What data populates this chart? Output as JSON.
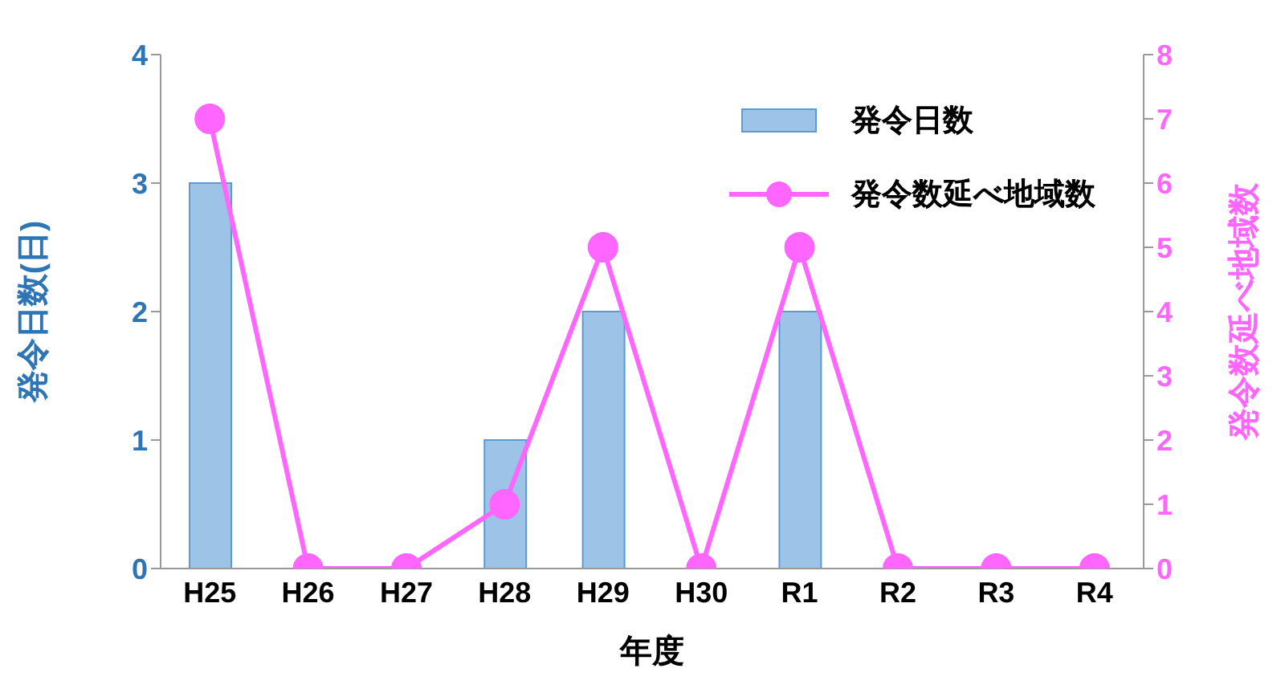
{
  "chart_data": {
    "type": "bar",
    "xlabel": "年度",
    "ylabel": "発令日数(日)",
    "y2label": "発令数延べ地域数",
    "categories": [
      "H25",
      "H26",
      "H27",
      "H28",
      "H29",
      "H30",
      "R1",
      "R2",
      "R3",
      "R4"
    ],
    "series": [
      {
        "name": "発令日数",
        "axis": "y",
        "color": "#9dc3e6",
        "values": [
          3,
          0,
          0,
          1,
          2,
          0,
          2,
          0,
          0,
          0
        ]
      },
      {
        "name": "発令数延べ地域数",
        "type": "line",
        "axis": "y2",
        "color": "#ff66ff",
        "marker": "circle",
        "values": [
          7,
          0,
          0,
          1,
          5,
          0,
          5,
          0,
          0,
          0
        ]
      }
    ],
    "ylim": [
      0,
      4
    ],
    "yticks": [
      0,
      1,
      2,
      3,
      4
    ],
    "y2lim": [
      0,
      8
    ],
    "y2ticks": [
      0,
      1,
      2,
      3,
      4,
      5,
      6,
      7,
      8
    ],
    "grid": false,
    "legend": "top right"
  }
}
